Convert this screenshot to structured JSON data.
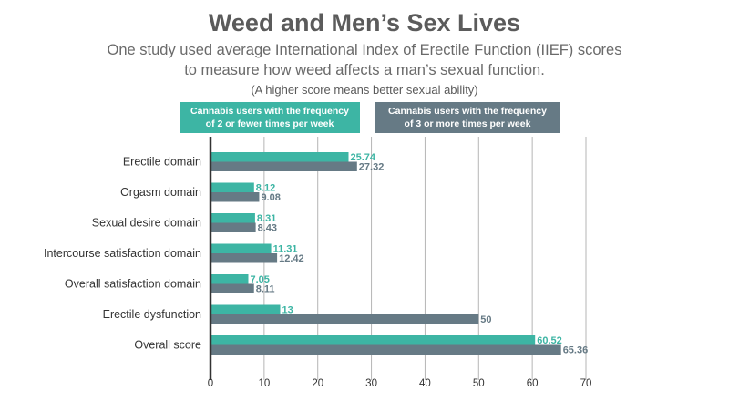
{
  "chart_data": {
    "type": "bar",
    "orientation": "horizontal",
    "title": "Weed and Men’s Sex Lives",
    "subtitle_lines": [
      "One study used average International Index of Erectile Function (IIEF) scores",
      "to measure how weed affects a man’s sexual function."
    ],
    "note": "(A higher score means better sexual ability)",
    "categories": [
      "Erectile domain",
      "Orgasm domain",
      "Sexual desire domain",
      "Intercourse satisfaction domain",
      "Overall satisfaction domain",
      "Erectile dysfunction",
      "Overall score"
    ],
    "series": [
      {
        "name_lines": [
          "Cannabis users with the frequency",
          "of 2 or fewer times per week"
        ],
        "color": "#3db5a4",
        "values": [
          25.74,
          8.12,
          8.31,
          11.31,
          7.05,
          13,
          60.52
        ],
        "labels": [
          "25.74",
          "8.12",
          "8.31",
          "11.31",
          "7.05",
          "13",
          "60.52"
        ]
      },
      {
        "name_lines": [
          "Cannabis users with the frequency",
          "of 3 or more times per week"
        ],
        "color": "#667a85",
        "values": [
          27.32,
          9.08,
          8.43,
          12.42,
          8.11,
          50,
          65.36
        ],
        "labels": [
          "27.32",
          "9.08",
          "8.43",
          "12.42",
          "8.11",
          "50",
          "65.36"
        ]
      }
    ],
    "xlim": [
      0,
      70
    ],
    "xticks": [
      0,
      10,
      20,
      30,
      40,
      50,
      60,
      70
    ],
    "grid": true,
    "legend_position": "top"
  }
}
